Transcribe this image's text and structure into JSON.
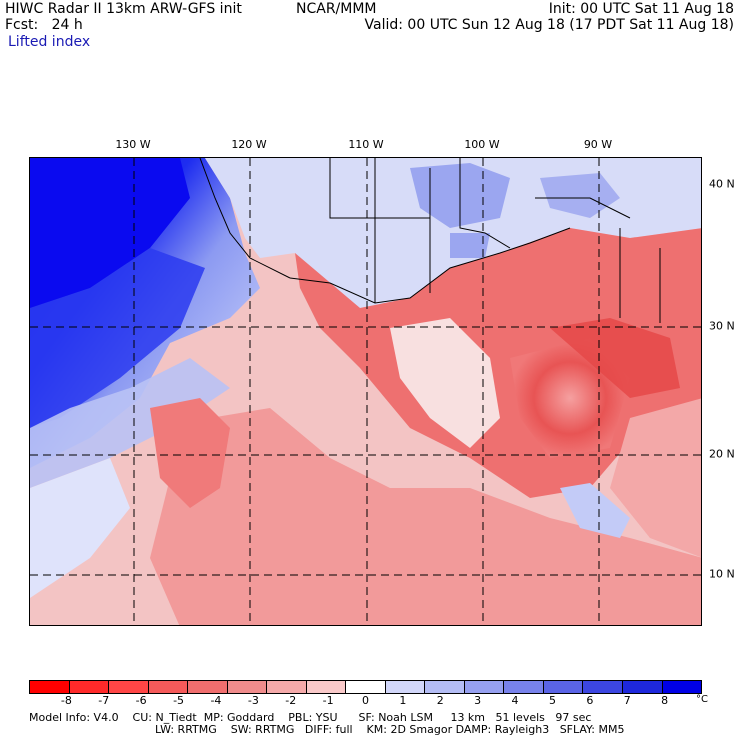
{
  "header": {
    "title_left": "HIWC Radar II 13km ARW-GFS init",
    "forecast_line": "Fcst:   24 h",
    "field_name": "Lifted index",
    "center": "NCAR/MMM",
    "init": "Init: 00 UTC Sat 11 Aug 18",
    "valid": "Valid: 00 UTC Sun 12 Aug 18 (17 PDT Sat 11 Aug 18)"
  },
  "map": {
    "lon_labels": [
      "130 W",
      "120 W",
      "110 W",
      "100 W",
      "90 W"
    ],
    "lat_labels": [
      "40 N",
      "30 N",
      "20 N",
      "10 N"
    ],
    "ocean_color": "#0a0af0",
    "land_warm_color": "#f06060",
    "land_cool_color": "#c8d2f5"
  },
  "colorbar": {
    "colors": [
      "#ff0000",
      "#ff2a2a",
      "#ff4646",
      "#f55a5a",
      "#f06e6e",
      "#f08c8c",
      "#f5aaaa",
      "#facaca",
      "#ffffff",
      "#d2d7fa",
      "#b4bdf5",
      "#96a0f0",
      "#7882eb",
      "#5a64e6",
      "#3c46e1",
      "#1e28dc",
      "#0000e6"
    ],
    "tick_labels": [
      "-8",
      "-7",
      "-6",
      "-5",
      "-4",
      "-3",
      "-2",
      "-1",
      "0",
      "1",
      "2",
      "3",
      "4",
      "5",
      "6",
      "7",
      "8"
    ],
    "unit": "°C"
  },
  "footer": {
    "line1": "Model Info: V4.0    CU: N_Tiedt  MP: Goddard    PBL: YSU      SF: Noah LSM     13 km   51 levels   97 sec",
    "line2": "LW: RRTMG    SW: RRTMG   DIFF: full    KM: 2D Smagor DAMP: Rayleigh3   SFLAY: MM5"
  }
}
